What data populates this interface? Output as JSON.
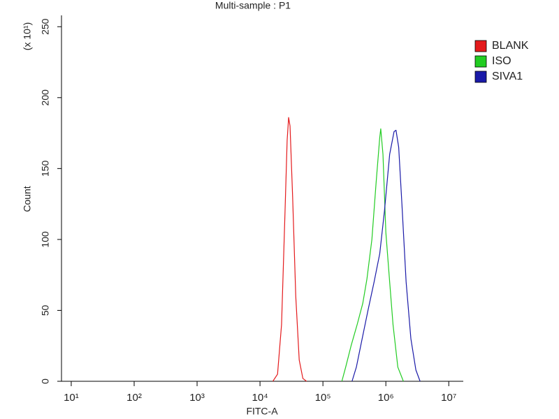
{
  "chart_data": {
    "type": "line",
    "title": "Multi-sample : P1",
    "x_label": "FITC-A",
    "y_label": "Count",
    "y_multiplier": "(x 10¹)",
    "log_x": true,
    "legend": "right",
    "xlim": [
      7,
      17000000
    ],
    "ylim": [
      0,
      258
    ],
    "xticks": [
      {
        "value": 10,
        "label": "10¹"
      },
      {
        "value": 100,
        "label": "10²"
      },
      {
        "value": 1000,
        "label": "10³"
      },
      {
        "value": 10000,
        "label": "10⁴"
      },
      {
        "value": 100000,
        "label": "10⁵"
      },
      {
        "value": 1000000,
        "label": "10⁶"
      },
      {
        "value": 10000000,
        "label": "10⁷"
      }
    ],
    "yticks": [
      0,
      50,
      100,
      150,
      200,
      250
    ],
    "series": [
      {
        "name": "BLANK",
        "color": "#e41a1c",
        "x": [
          16000,
          19000,
          22000,
          25000,
          27000,
          28500,
          30000,
          33000,
          37000,
          42000,
          48000,
          55000
        ],
        "values": [
          0,
          5,
          40,
          120,
          170,
          186,
          180,
          130,
          60,
          15,
          2,
          0
        ]
      },
      {
        "name": "ISO",
        "color": "#22cc22",
        "x": [
          200000,
          230000,
          280000,
          350000,
          430000,
          500000,
          600000,
          700000,
          800000,
          830000,
          900000,
          1000000,
          1150000,
          1300000,
          1550000,
          1900000
        ],
        "values": [
          0,
          10,
          25,
          40,
          55,
          72,
          100,
          140,
          172,
          178,
          160,
          105,
          70,
          40,
          10,
          0
        ]
      },
      {
        "name": "SIVA1",
        "color": "#1a1aa8",
        "x": [
          290000,
          340000,
          420000,
          520000,
          650000,
          800000,
          950000,
          1150000,
          1350000,
          1450000,
          1600000,
          1800000,
          2100000,
          2500000,
          3000000,
          3500000
        ],
        "values": [
          0,
          10,
          30,
          50,
          70,
          90,
          120,
          160,
          176,
          177,
          165,
          125,
          70,
          30,
          8,
          0
        ]
      }
    ]
  }
}
